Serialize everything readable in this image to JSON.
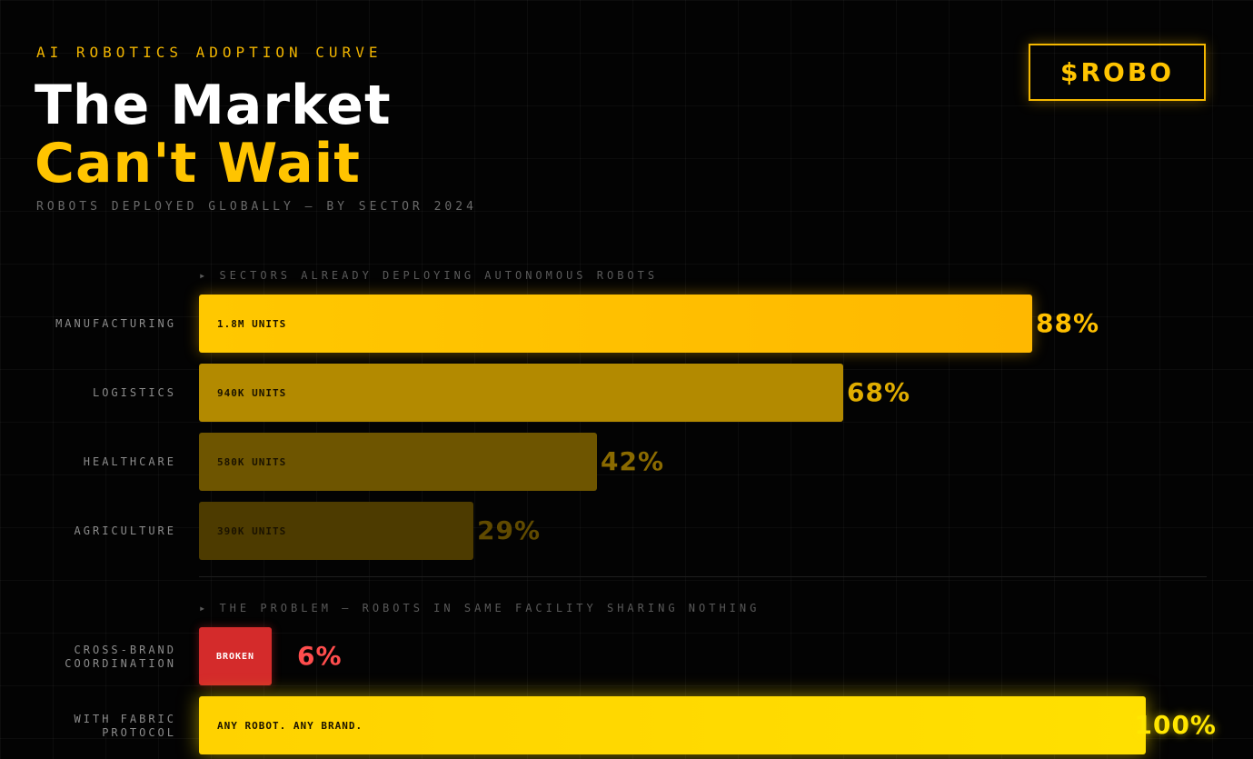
{
  "header": {
    "eyebrow": "AI ROBOTICS ADOPTION CURVE",
    "title_line1": "The Market",
    "title_line2": "Can't Wait",
    "subtitle": "ROBOTS DEPLOYED GLOBALLY — BY SECTOR 2024",
    "badge": "$ROBO"
  },
  "colors": {
    "accent": "#ffc400",
    "red": "#d42b2b",
    "red_text": "#ff4d4d",
    "background": "#030303"
  },
  "chart_data": [
    {
      "type": "bar",
      "orientation": "horizontal",
      "section_label": "▸ SECTORS ALREADY DEPLOYING AUTONOMOUS ROBOTS",
      "xlim": [
        0,
        100
      ],
      "unit": "%",
      "items": [
        {
          "category": "MANUFACTURING",
          "value": 88,
          "value_label": "88%",
          "inner_label": "1.8M UNITS",
          "color": "#ffb800"
        },
        {
          "category": "LOGISTICS",
          "value": 68,
          "value_label": "68%",
          "inner_label": "940K UNITS",
          "color": "#b38a00"
        },
        {
          "category": "HEALTHCARE",
          "value": 42,
          "value_label": "42%",
          "inner_label": "580K UNITS",
          "color": "#6e5500"
        },
        {
          "category": "AGRICULTURE",
          "value": 29,
          "value_label": "29%",
          "inner_label": "390K UNITS",
          "color": "#4d3b00"
        }
      ]
    },
    {
      "type": "bar",
      "orientation": "horizontal",
      "section_label": "▸ THE PROBLEM — ROBOTS IN SAME FACILITY SHARING NOTHING",
      "xlim": [
        0,
        100
      ],
      "unit": "%",
      "items": [
        {
          "category": "CROSS-BRAND COORDINATION",
          "value": 6,
          "value_label": "6%",
          "inner_label": "BROKEN",
          "color": "#d42b2b"
        },
        {
          "category": "WITH FABRIC PROTOCOL",
          "value": 100,
          "value_label": "100%",
          "inner_label": "ANY ROBOT. ANY BRAND.",
          "color": "#ffe000"
        }
      ]
    }
  ]
}
